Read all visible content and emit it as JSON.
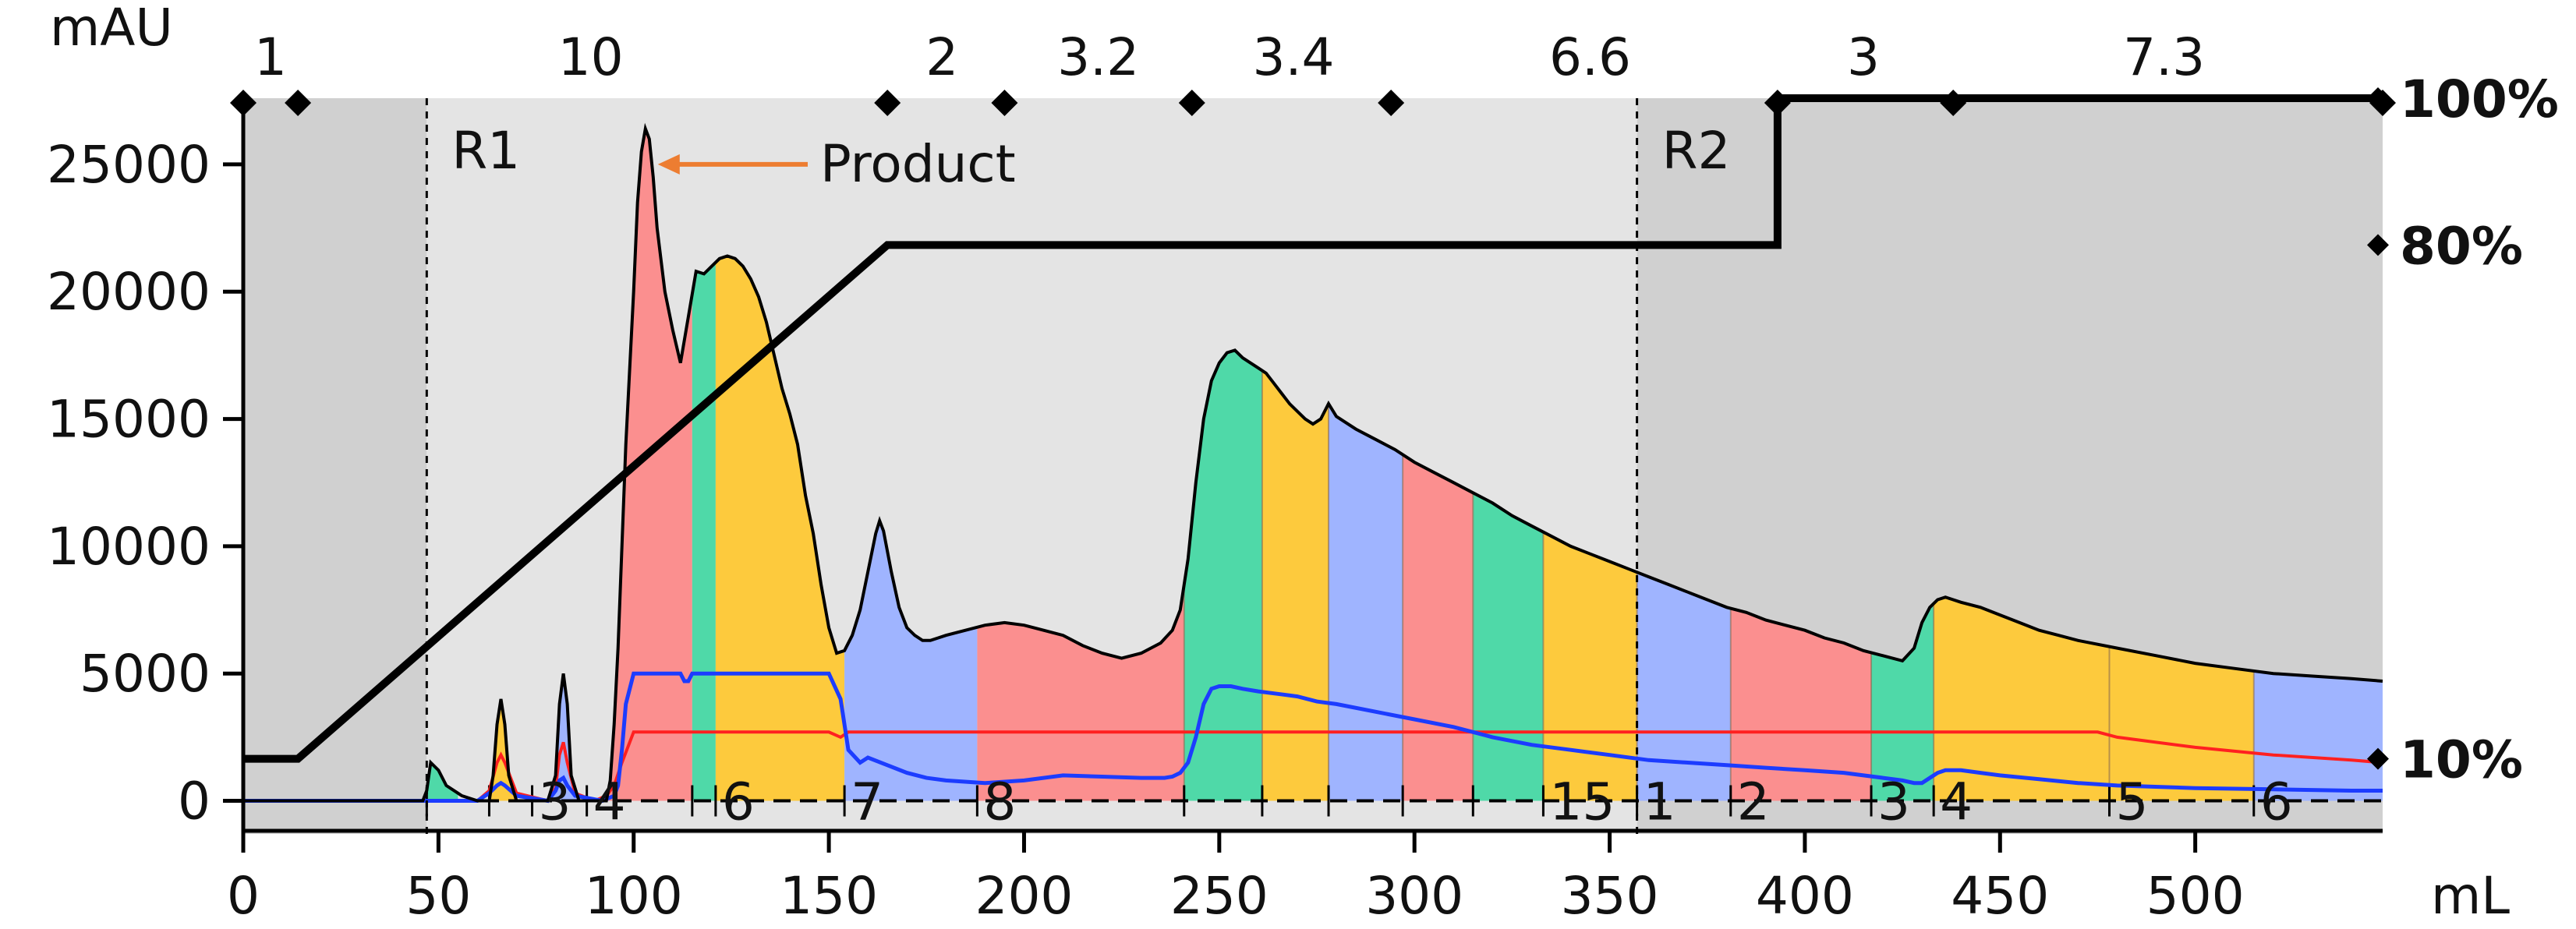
{
  "chart_data": {
    "type": "area",
    "ylabel": "mAU",
    "xlabel": "mL",
    "xlim": [
      0,
      548
    ],
    "ylim": [
      -1300,
      27600
    ],
    "x_ticks": [
      0,
      50,
      100,
      150,
      200,
      250,
      300,
      350,
      400,
      450,
      500
    ],
    "y_ticks": [
      0,
      5000,
      10000,
      15000,
      20000,
      25000
    ],
    "right_axis_labels": [
      {
        "value": 100,
        "label": "100%"
      },
      {
        "value": 80,
        "label": "80%"
      },
      {
        "value": 10,
        "label": "10%"
      }
    ],
    "top_segment_labels": [
      {
        "x": 7,
        "label": "1"
      },
      {
        "x": 89,
        "label": "10"
      },
      {
        "x": 179,
        "label": "2"
      },
      {
        "x": 219,
        "label": "3.2"
      },
      {
        "x": 269,
        "label": "3.4"
      },
      {
        "x": 345,
        "label": "6.6"
      },
      {
        "x": 415,
        "label": "3"
      },
      {
        "x": 492,
        "label": "7.3"
      }
    ],
    "top_markers_x": [
      0,
      14,
      165,
      195,
      243,
      294,
      393,
      438,
      548
    ],
    "regions": [
      {
        "label": "R1",
        "x": 47
      },
      {
        "label": "R2",
        "x": 357
      }
    ],
    "annotation": {
      "label": "Product",
      "x": 105,
      "y": 25000
    },
    "series": [
      {
        "name": "UV",
        "color": "#000000",
        "x": [
          0,
          46,
          47,
          48,
          50,
          52,
          56,
          60,
          63,
          64,
          65,
          66,
          67,
          68,
          70,
          75,
          78,
          80,
          81,
          82,
          83,
          84,
          86,
          90,
          93,
          94,
          95,
          96,
          97,
          98,
          100,
          101,
          102,
          103,
          104,
          105,
          106,
          108,
          110,
          112,
          114,
          116,
          118,
          120,
          122,
          124,
          126,
          128,
          130,
          132,
          134,
          136,
          138,
          140,
          142,
          144,
          146,
          148,
          150,
          152,
          154,
          156,
          158,
          160,
          162,
          163,
          164,
          166,
          168,
          170,
          172,
          174,
          176,
          178,
          180,
          185,
          190,
          195,
          200,
          205,
          210,
          215,
          220,
          225,
          230,
          235,
          238,
          240,
          242,
          244,
          246,
          248,
          250,
          252,
          254,
          256,
          258,
          260,
          262,
          264,
          266,
          268,
          270,
          272,
          274,
          276,
          278,
          280,
          285,
          290,
          295,
          300,
          305,
          310,
          315,
          320,
          325,
          330,
          335,
          340,
          345,
          350,
          355,
          360,
          365,
          370,
          375,
          380,
          385,
          390,
          395,
          400,
          405,
          410,
          415,
          420,
          425,
          428,
          430,
          432,
          434,
          436,
          438,
          440,
          445,
          450,
          455,
          460,
          465,
          470,
          480,
          490,
          500,
          510,
          520,
          530,
          540,
          548
        ],
        "values": [
          0,
          0,
          400,
          1500,
          1200,
          600,
          200,
          0,
          0,
          1000,
          3000,
          4000,
          3000,
          1000,
          0,
          0,
          0,
          1000,
          3800,
          5000,
          3800,
          1000,
          0,
          0,
          0,
          800,
          3000,
          6000,
          10000,
          14000,
          20000,
          23500,
          25500,
          26400,
          26000,
          24500,
          22500,
          20000,
          18500,
          17200,
          19000,
          20800,
          20700,
          21000,
          21300,
          21400,
          21300,
          21000,
          20500,
          19800,
          18800,
          17500,
          16200,
          15200,
          14000,
          12000,
          10500,
          8500,
          6800,
          5800,
          5900,
          6500,
          7500,
          9000,
          10500,
          11000,
          10600,
          9000,
          7600,
          6800,
          6500,
          6300,
          6300,
          6400,
          6500,
          6700,
          6900,
          7000,
          6900,
          6700,
          6500,
          6100,
          5800,
          5600,
          5800,
          6200,
          6700,
          7500,
          9500,
          12500,
          15000,
          16500,
          17200,
          17600,
          17700,
          17400,
          17200,
          17000,
          16800,
          16400,
          16000,
          15600,
          15300,
          15000,
          14800,
          15000,
          15600,
          15100,
          14600,
          14200,
          13800,
          13300,
          12900,
          12500,
          12100,
          11700,
          11200,
          10800,
          10400,
          10000,
          9700,
          9400,
          9100,
          8800,
          8500,
          8200,
          7900,
          7600,
          7400,
          7100,
          6900,
          6700,
          6400,
          6200,
          5900,
          5700,
          5500,
          6000,
          7000,
          7600,
          7900,
          8000,
          7900,
          7800,
          7600,
          7300,
          7000,
          6700,
          6500,
          6300,
          6000,
          5700,
          5400,
          5200,
          5000,
          4900,
          4800,
          4700
        ]
      },
      {
        "name": "Conductivity",
        "color": "#1c3cff",
        "x": [
          0,
          60,
          63,
          65,
          66,
          67,
          70,
          78,
          80,
          81,
          82,
          83,
          85,
          92,
          95,
          96,
          97,
          98,
          100,
          112,
          113,
          114,
          115,
          116,
          140,
          145,
          150,
          153,
          155,
          158,
          160,
          165,
          170,
          175,
          180,
          190,
          200,
          210,
          220,
          230,
          236,
          238,
          240,
          242,
          244,
          246,
          248,
          250,
          253,
          256,
          260,
          265,
          270,
          275,
          280,
          290,
          300,
          310,
          320,
          330,
          340,
          350,
          360,
          370,
          380,
          390,
          400,
          410,
          420,
          425,
          428,
          430,
          432,
          434,
          436,
          438,
          440,
          445,
          450,
          460,
          470,
          480,
          500,
          520,
          540,
          548
        ],
        "values": [
          0,
          0,
          300,
          600,
          700,
          600,
          200,
          0,
          400,
          800,
          900,
          600,
          200,
          0,
          200,
          600,
          2000,
          3800,
          5000,
          5000,
          4700,
          4700,
          5000,
          5000,
          5000,
          5000,
          5000,
          4000,
          2000,
          1500,
          1700,
          1400,
          1100,
          900,
          800,
          700,
          800,
          1000,
          950,
          900,
          900,
          950,
          1100,
          1500,
          2500,
          3800,
          4400,
          4500,
          4500,
          4400,
          4300,
          4200,
          4100,
          3900,
          3800,
          3500,
          3200,
          2900,
          2500,
          2200,
          2000,
          1800,
          1600,
          1500,
          1400,
          1300,
          1200,
          1100,
          900,
          800,
          700,
          700,
          900,
          1100,
          1200,
          1200,
          1200,
          1100,
          1000,
          850,
          700,
          600,
          500,
          450,
          400,
          400
        ]
      },
      {
        "name": "Conductivity 2",
        "color": "#ff2020",
        "x": [
          0,
          60,
          63,
          65,
          66,
          67,
          70,
          78,
          80,
          81,
          82,
          83,
          85,
          90,
          93,
          95,
          97,
          100,
          150,
          153,
          155,
          158,
          200,
          300,
          400,
          470,
          475,
          480,
          500,
          520,
          540,
          548
        ],
        "values": [
          0,
          0,
          400,
          1500,
          1800,
          1500,
          300,
          0,
          500,
          1800,
          2300,
          1500,
          300,
          0,
          200,
          600,
          1500,
          2700,
          2700,
          2500,
          2700,
          2700,
          2700,
          2700,
          2700,
          2700,
          2700,
          2500,
          2100,
          1800,
          1600,
          1500
        ]
      },
      {
        "name": "Gradient",
        "color": "#000000",
        "axis": "right",
        "x": [
          0,
          14,
          165,
          393,
          393,
          548
        ],
        "values": [
          10,
          10,
          80,
          80,
          100,
          100
        ]
      }
    ],
    "fractions": [
      {
        "start": 47,
        "end": 55,
        "label": "",
        "color": "#4fd9a8"
      },
      {
        "start": 63,
        "end": 74,
        "label": "",
        "color": "#fdca3d"
      },
      {
        "start": 74,
        "end": 88,
        "label": "3",
        "color": "#9fb4ff"
      },
      {
        "start": 88,
        "end": 115,
        "label": "4",
        "color": "#fb8f8f"
      },
      {
        "start": 115,
        "end": 121,
        "label": "",
        "color": "#4fd9a8"
      },
      {
        "start": 121,
        "end": 154,
        "label": "6",
        "color": "#fdca3d"
      },
      {
        "start": 154,
        "end": 188,
        "label": "7",
        "color": "#9fb4ff"
      },
      {
        "start": 188,
        "end": 241,
        "label": "8",
        "color": "#fb8f8f"
      },
      {
        "start": 241,
        "end": 261,
        "label": "",
        "color": "#4fd9a8"
      },
      {
        "start": 261,
        "end": 278,
        "label": "",
        "color": "#fdca3d"
      },
      {
        "start": 278,
        "end": 297,
        "label": "",
        "color": "#9fb4ff"
      },
      {
        "start": 297,
        "end": 315,
        "label": "",
        "color": "#fb8f8f"
      },
      {
        "start": 315,
        "end": 333,
        "label": "",
        "color": "#4fd9a8"
      },
      {
        "start": 333,
        "end": 357,
        "label": "15",
        "color": "#fdca3d"
      },
      {
        "start": 357,
        "end": 381,
        "label": "1",
        "color": "#9fb4ff"
      },
      {
        "start": 381,
        "end": 417,
        "label": "2",
        "color": "#fb8f8f"
      },
      {
        "start": 417,
        "end": 433,
        "label": "3",
        "color": "#4fd9a8"
      },
      {
        "start": 433,
        "end": 478,
        "label": "4",
        "color": "#fdca3d"
      },
      {
        "start": 478,
        "end": 515,
        "label": "5",
        "color": "#fdca3d"
      },
      {
        "start": 515,
        "end": 548,
        "label": "6",
        "color": "#9fb4ff"
      }
    ],
    "fraction_dividers_x": [
      241,
      261,
      278,
      297,
      315,
      333,
      357,
      381,
      417,
      433,
      478,
      515
    ],
    "colors": {
      "background_light": "#e4e4e4",
      "background_dark": "#d0d0d0",
      "annotation_arrow": "#ed7d31"
    },
    "grid": false,
    "legend": "none"
  }
}
